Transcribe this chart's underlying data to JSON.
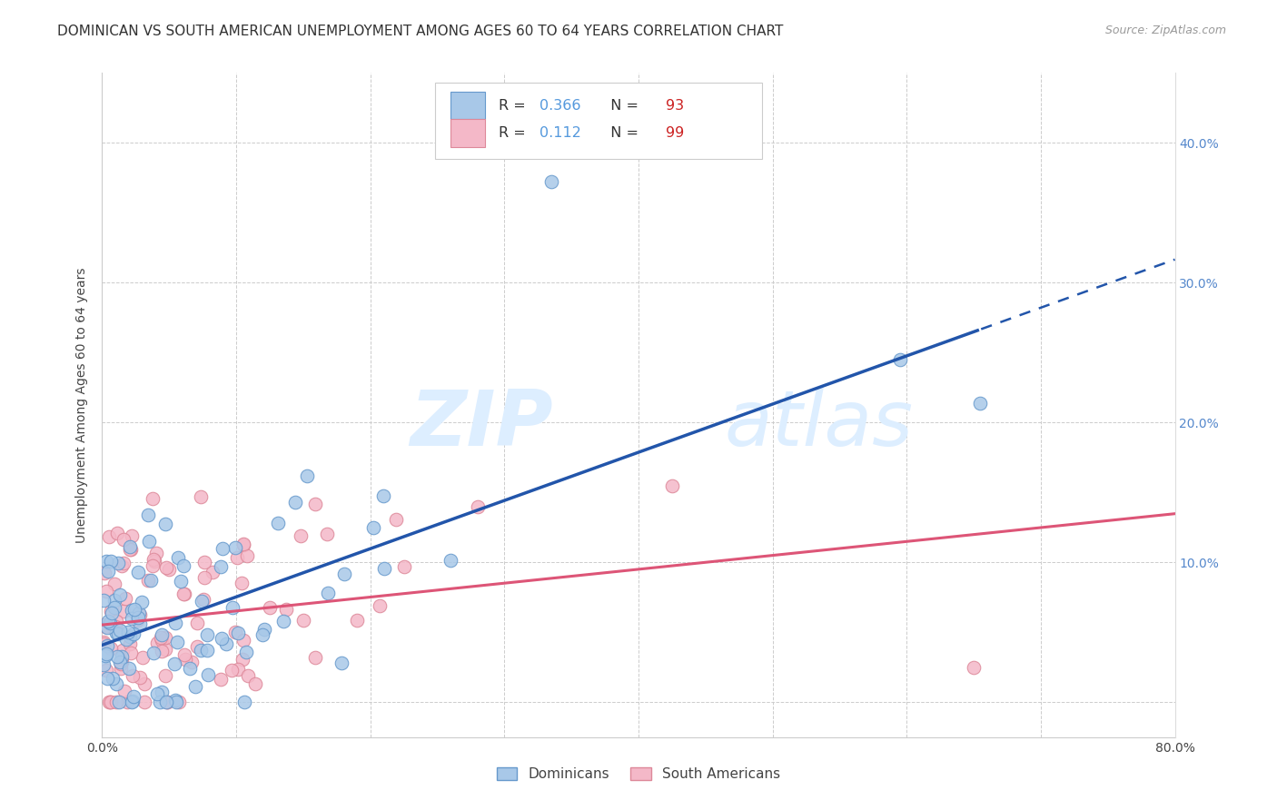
{
  "title": "DOMINICAN VS SOUTH AMERICAN UNEMPLOYMENT AMONG AGES 60 TO 64 YEARS CORRELATION CHART",
  "source": "Source: ZipAtlas.com",
  "ylabel": "Unemployment Among Ages 60 to 64 years",
  "xlim": [
    0.0,
    0.8
  ],
  "ylim": [
    -0.025,
    0.45
  ],
  "yticks": [
    0.0,
    0.1,
    0.2,
    0.3,
    0.4
  ],
  "ytick_labels": [
    "",
    "10.0%",
    "20.0%",
    "30.0%",
    "40.0%"
  ],
  "xticks": [
    0.0,
    0.1,
    0.2,
    0.3,
    0.4,
    0.5,
    0.6,
    0.7,
    0.8
  ],
  "xtick_labels": [
    "0.0%",
    "",
    "",
    "",
    "",
    "",
    "",
    "",
    "80.0%"
  ],
  "dominican_color": "#A8C8E8",
  "dominican_edge_color": "#6699CC",
  "south_american_color": "#F4B8C8",
  "south_american_edge_color": "#DD8899",
  "regression_blue": "#2255AA",
  "regression_pink": "#DD5577",
  "R_dominican": 0.366,
  "N_dominican": 93,
  "R_south_american": 0.112,
  "N_south_american": 99,
  "background_color": "#FFFFFF",
  "watermark_zip": "ZIP",
  "watermark_atlas": "atlas",
  "title_fontsize": 11,
  "axis_label_fontsize": 10,
  "tick_fontsize": 10
}
